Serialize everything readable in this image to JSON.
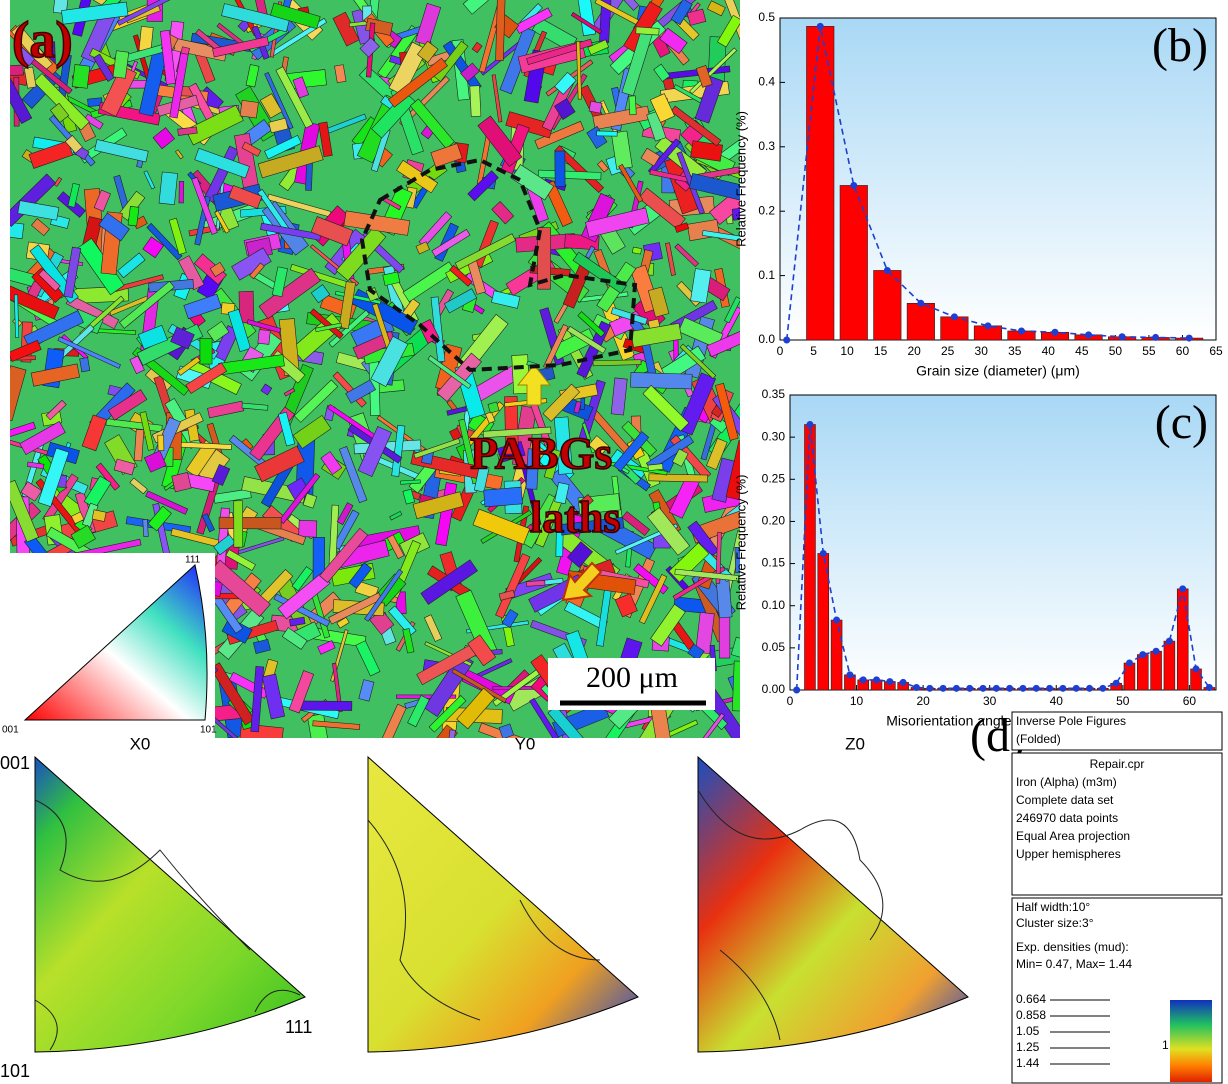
{
  "panel_a": {
    "label": "(a)",
    "annotations": [
      "PABGs",
      "laths"
    ],
    "scale_bar": "200 μm",
    "ipf_key": {
      "top": "111",
      "left": "001",
      "right": "101"
    }
  },
  "chart_data": [
    {
      "type": "bar",
      "panel_label": "(b)",
      "ylabel": "Relative Frequency (%)",
      "xlabel": "Grain size (diameter) (μm)",
      "x": [
        6,
        11,
        16,
        21,
        26,
        31,
        36,
        41,
        46,
        51,
        56,
        61
      ],
      "bars": {
        "color": "#ff0000",
        "values": [
          0.487,
          0.24,
          0.108,
          0.057,
          0.036,
          0.022,
          0.014,
          0.012,
          0.008,
          0.005,
          0.004,
          0.003
        ]
      },
      "line": {
        "color": "#1f3fd0",
        "x": [
          1,
          6,
          11,
          16,
          21,
          26,
          31,
          36,
          41,
          46,
          51,
          56,
          61
        ],
        "values": [
          0,
          0.487,
          0.24,
          0.108,
          0.057,
          0.036,
          0.022,
          0.014,
          0.012,
          0.008,
          0.005,
          0.004,
          0.003
        ]
      },
      "xlim": [
        0,
        65
      ],
      "xticks": [
        0,
        5,
        10,
        15,
        20,
        25,
        30,
        35,
        40,
        45,
        50,
        55,
        60,
        65
      ],
      "ylim": [
        0,
        0.5
      ],
      "yticks": [
        {
          "value": 0,
          "label": "0.0"
        },
        0.1,
        0.2,
        0.3,
        0.4,
        0.5
      ]
    },
    {
      "type": "bar",
      "panel_label": "(c)",
      "ylabel": "Relative Frequency (%)",
      "xlabel": "Misorientation angle distribution (deg)",
      "x": [
        3,
        5,
        7,
        9,
        11,
        13,
        15,
        17,
        19,
        21,
        23,
        25,
        27,
        29,
        31,
        33,
        35,
        37,
        39,
        41,
        43,
        45,
        47,
        49,
        51,
        53,
        55,
        57,
        59,
        61,
        63
      ],
      "bars": {
        "color": "#ff0000",
        "values": [
          0.315,
          0.162,
          0.083,
          0.018,
          0.012,
          0.012,
          0.01,
          0.009,
          0.003,
          0.002,
          0.002,
          0.002,
          0.002,
          0.002,
          0.002,
          0.002,
          0.002,
          0.002,
          0.002,
          0.002,
          0.002,
          0.002,
          0.002,
          0.008,
          0.032,
          0.042,
          0.046,
          0.058,
          0.12,
          0.025,
          0.003
        ]
      },
      "line": {
        "color": "#1f3fd0",
        "x": [
          1,
          3,
          5,
          7,
          9,
          11,
          13,
          15,
          17,
          19,
          21,
          23,
          25,
          27,
          29,
          31,
          33,
          35,
          37,
          39,
          41,
          43,
          45,
          47,
          49,
          51,
          53,
          55,
          57,
          59,
          61,
          63
        ],
        "values": [
          0,
          0.315,
          0.162,
          0.083,
          0.018,
          0.012,
          0.012,
          0.01,
          0.009,
          0.003,
          0.002,
          0.002,
          0.002,
          0.002,
          0.002,
          0.002,
          0.002,
          0.002,
          0.002,
          0.002,
          0.002,
          0.002,
          0.002,
          0.002,
          0.008,
          0.032,
          0.042,
          0.046,
          0.058,
          0.12,
          0.025,
          0.003
        ]
      },
      "xlim": [
        0,
        64
      ],
      "xticks": [
        0,
        10,
        20,
        30,
        40,
        50,
        60
      ],
      "ylim": [
        0,
        0.35
      ],
      "yticks": [
        {
          "value": 0,
          "label": "0.00"
        },
        {
          "value": 0.05,
          "label": "0.05"
        },
        {
          "value": 0.1,
          "label": "0.10"
        },
        {
          "value": 0.15,
          "label": "0.15"
        },
        {
          "value": 0.2,
          "label": "0.20"
        },
        {
          "value": 0.25,
          "label": "0.25"
        },
        {
          "value": 0.3,
          "label": "0.30"
        },
        {
          "value": 0.35,
          "label": "0.35"
        }
      ]
    }
  ],
  "panel_d": {
    "label": "(d)",
    "figures": [
      "X0",
      "Y0",
      "Z0"
    ],
    "corners": {
      "top": "001",
      "bottom": "101",
      "right": "111"
    },
    "info": {
      "header": [
        "Inverse Pole Figures",
        "(Folded)"
      ],
      "file": "Repair.cpr",
      "details": [
        "Iron (Alpha) (m3m)",
        "Complete data set",
        "246970 data points",
        "Equal Area projection",
        "Upper hemispheres"
      ],
      "settings": [
        "Half width:10°",
        "Cluster size:3°"
      ],
      "densities": [
        "Exp. densities (mud):",
        "Min= 0.47, Max= 1.44"
      ],
      "levels": [
        "0.664",
        "0.858",
        "1.05",
        "1.25",
        "1.44"
      ],
      "colorbar_label": "1"
    }
  }
}
